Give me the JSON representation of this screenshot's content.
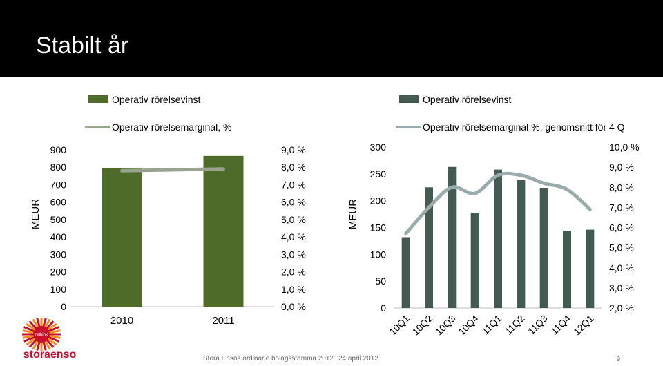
{
  "slide": {
    "title": "Stabilt år",
    "footer_left": "Stora Ensos ordinarie bolagsstämma 2012",
    "footer_date": "24 april 2012",
    "page_number": "9",
    "logo_text": "storaenso",
    "logo_tagline": "rethink"
  },
  "colors": {
    "bar_left": "#4f6b2a",
    "bar_right": "#445b52",
    "line_left": "#9aa38e",
    "line_right": "#9aabab",
    "logo_red": "#c8102e",
    "logo_orange": "#f3901d"
  },
  "chart_data": [
    {
      "type": "bar",
      "legend": [
        "Operativ rörelsevinst",
        "Operativ rörelsemarginal, %"
      ],
      "ylabel": "MEUR",
      "categories": [
        "2010",
        "2011"
      ],
      "series": [
        {
          "name": "Operativ rörelsevinst",
          "type": "bar",
          "axis": "left",
          "values": [
            797,
            865
          ]
        },
        {
          "name": "Operativ rörelsemarginal, %",
          "type": "line",
          "axis": "right",
          "values": [
            7.8,
            7.9
          ]
        }
      ],
      "ylim": [
        0,
        900
      ],
      "ylim_right": [
        0,
        9
      ],
      "yticks": [
        "0",
        "100",
        "200",
        "300",
        "400",
        "500",
        "600",
        "700",
        "800",
        "900"
      ],
      "yticks_right": [
        "0,0 %",
        "1,0 %",
        "2,0 %",
        "3,0 %",
        "4,0 %",
        "5,0 %",
        "6,0 %",
        "7,0 %",
        "8,0 %",
        "9,0 %"
      ]
    },
    {
      "type": "bar",
      "legend": [
        "Operativ rörelsevinst",
        "Operativ rörelsemarginal %, genomsnitt för 4 Q"
      ],
      "ylabel": "MEUR",
      "categories": [
        "10Q1",
        "10Q2",
        "10Q3",
        "10Q4",
        "11Q1",
        "11Q2",
        "11Q3",
        "11Q4",
        "12Q1"
      ],
      "series": [
        {
          "name": "Operativ rörelsevinst",
          "type": "bar",
          "axis": "left",
          "values": [
            132,
            225,
            263,
            177,
            258,
            239,
            224,
            144,
            146
          ]
        },
        {
          "name": "Operativ rörelsemarginal %, genomsnitt för 4 Q",
          "type": "line",
          "axis": "right",
          "values": [
            5.7,
            7.0,
            8.0,
            7.7,
            8.6,
            8.6,
            8.2,
            7.9,
            6.9
          ]
        }
      ],
      "ylim": [
        0,
        300
      ],
      "ylim_right": [
        2,
        10
      ],
      "yticks": [
        "0",
        "50",
        "100",
        "150",
        "200",
        "250",
        "300"
      ],
      "yticks_right": [
        "2,0 %",
        "3,0 %",
        "4,0 %",
        "5,0 %",
        "6,0 %",
        "7,0 %",
        "8,0 %",
        "9,0 %",
        "10,0 %"
      ]
    }
  ]
}
